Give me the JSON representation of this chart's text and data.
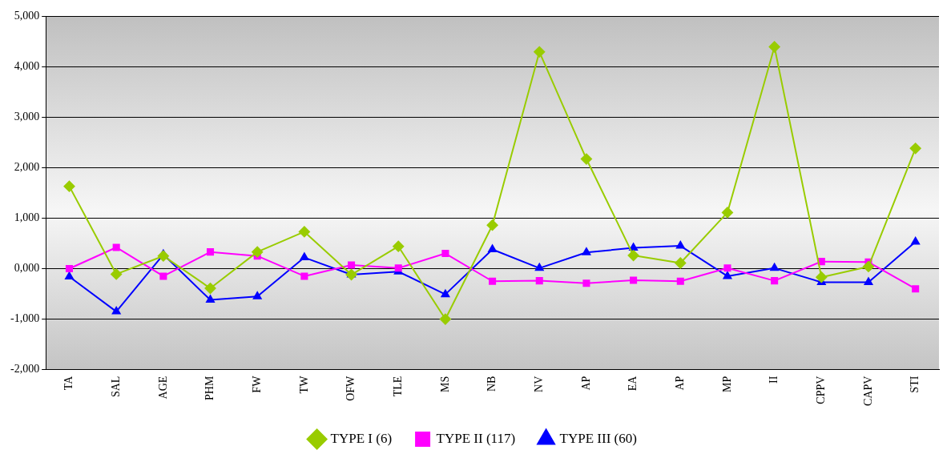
{
  "chart_data": {
    "type": "line",
    "categories": [
      "TA",
      "SAL",
      "AGE",
      "PHM",
      "FW",
      "TW",
      "OFW",
      "TLE",
      "MS",
      "NB",
      "NV",
      "AP",
      "EA",
      "AP",
      "MP",
      "II",
      "CPPV",
      "CAPV",
      "STI"
    ],
    "series": [
      {
        "name": "TYPE I (6)",
        "color": "#99cc00",
        "marker": "diamond",
        "values": [
          1630,
          -110,
          250,
          -390,
          330,
          730,
          -120,
          440,
          -1000,
          860,
          4290,
          2170,
          260,
          110,
          1110,
          4390,
          -170,
          40,
          2380
        ]
      },
      {
        "name": "TYPE II (117)",
        "color": "#ff00ff",
        "marker": "square",
        "values": [
          0,
          420,
          -150,
          330,
          250,
          -150,
          70,
          10,
          300,
          -250,
          -240,
          -290,
          -230,
          -250,
          10,
          -240,
          140,
          130,
          -400
        ]
      },
      {
        "name": "TYPE III (60)",
        "color": "#0000ff",
        "marker": "triangle",
        "values": [
          -160,
          -850,
          280,
          -620,
          -550,
          220,
          -120,
          -60,
          -510,
          380,
          10,
          320,
          410,
          450,
          -150,
          10,
          -270,
          -270,
          530
        ]
      }
    ],
    "ylim": [
      -2000,
      5000
    ],
    "yticks": [
      {
        "value": -2000,
        "label": "-2,000"
      },
      {
        "value": -1000,
        "label": "-1,000"
      },
      {
        "value": 0,
        "label": "0,000"
      },
      {
        "value": 1000,
        "label": "1,000"
      },
      {
        "value": 2000,
        "label": "2,000"
      },
      {
        "value": 3000,
        "label": "3,000"
      },
      {
        "value": 4000,
        "label": "4,000"
      },
      {
        "value": 5000,
        "label": "5,000"
      }
    ],
    "grid": "y",
    "legend": "bottom"
  }
}
